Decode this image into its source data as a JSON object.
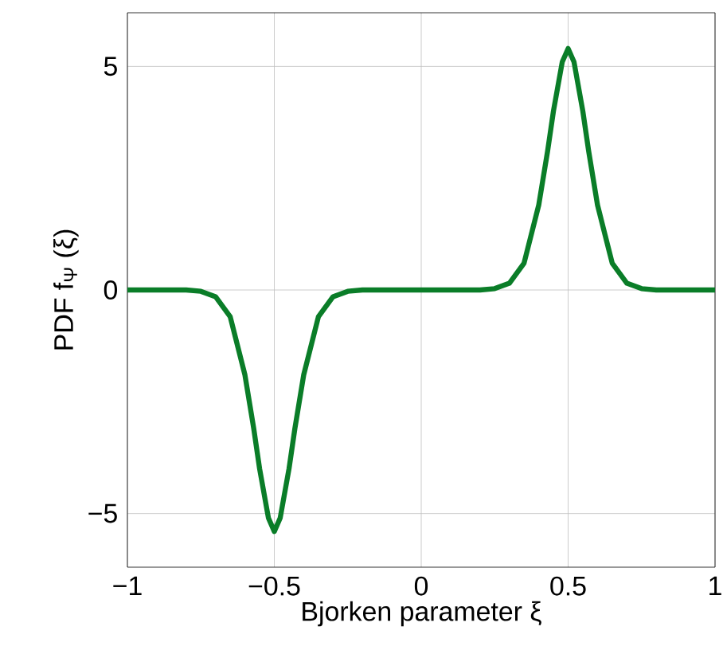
{
  "chart_data": {
    "type": "line",
    "xlabel": "Bjorken parameter ξ",
    "ylabel": "PDF f$_{Ψ}$ (ξ)",
    "xlim": [
      -1,
      1
    ],
    "ylim": [
      -6.2,
      6.2
    ],
    "xticks": [
      {
        "value": -1,
        "label": "−1"
      },
      {
        "value": -0.5,
        "label": "−0.5"
      },
      0,
      0.5,
      1
    ],
    "yticks": [
      {
        "value": -5,
        "label": "−5"
      },
      0,
      5
    ],
    "grid": true,
    "series": [
      {
        "color": "#0a7d28",
        "x": [
          -1,
          -0.8,
          -0.75,
          -0.7,
          -0.65,
          -0.6,
          -0.57,
          -0.55,
          -0.52,
          -0.5,
          -0.48,
          -0.45,
          -0.43,
          -0.4,
          -0.35,
          -0.3,
          -0.25,
          -0.2,
          0,
          0.2,
          0.25,
          0.3,
          0.35,
          0.4,
          0.43,
          0.45,
          0.48,
          0.5,
          0.52,
          0.55,
          0.57,
          0.6,
          0.65,
          0.7,
          0.75,
          0.8,
          1
        ],
        "values": [
          0,
          0,
          -0.03,
          -0.15,
          -0.6,
          -1.9,
          -3.1,
          -4.0,
          -5.1,
          -5.4,
          -5.1,
          -4.0,
          -3.1,
          -1.9,
          -0.6,
          -0.15,
          -0.03,
          0,
          0,
          0,
          0.03,
          0.15,
          0.6,
          1.9,
          3.1,
          4.0,
          5.1,
          5.4,
          5.1,
          4.0,
          3.1,
          1.9,
          0.6,
          0.15,
          0.03,
          0,
          0
        ]
      }
    ]
  }
}
